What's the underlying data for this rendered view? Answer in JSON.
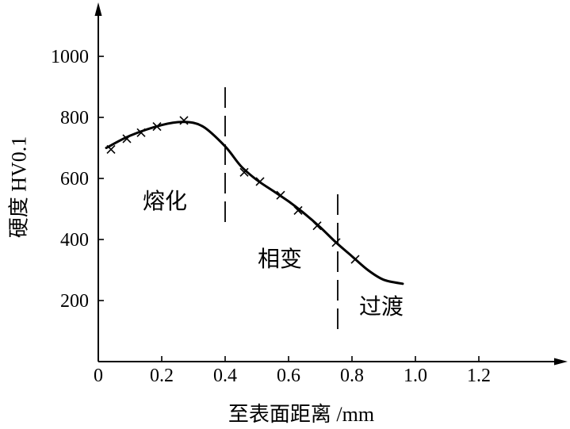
{
  "chart_data": {
    "type": "line",
    "title": "",
    "xlabel": "至表面距离 /mm",
    "ylabel": "硬度 HV0.1",
    "xlim": [
      0,
      1.475
    ],
    "ylim": [
      0,
      1169
    ],
    "grid": false,
    "legend": "none",
    "axis_arrows": true,
    "xticks": [
      {
        "value": 0,
        "label": "0"
      },
      {
        "value": 0.2,
        "label": "0.2"
      },
      {
        "value": 0.4,
        "label": "0.4"
      },
      {
        "value": 0.6,
        "label": "0.6"
      },
      {
        "value": 0.8,
        "label": "0.8"
      },
      {
        "value": 1.0,
        "label": "1.0"
      },
      {
        "value": 1.2,
        "label": "1.2"
      }
    ],
    "yticks": [
      {
        "value": 200,
        "label": "200"
      },
      {
        "value": 400,
        "label": "400"
      },
      {
        "value": 600,
        "label": "600"
      },
      {
        "value": 800,
        "label": "800"
      },
      {
        "value": 1000,
        "label": "1000"
      }
    ],
    "series": [
      {
        "style": "smooth-line",
        "x": [
          0.025,
          0.1,
          0.2,
          0.27,
          0.33,
          0.4,
          0.45,
          0.5,
          0.55,
          0.6,
          0.65,
          0.7,
          0.75,
          0.8,
          0.85,
          0.9,
          0.96
        ],
        "y": [
          700,
          740,
          775,
          785,
          770,
          705,
          640,
          595,
          560,
          525,
          485,
          440,
          390,
          345,
          300,
          268,
          255
        ]
      },
      {
        "style": "markers",
        "marker": "x",
        "x": [
          0.04,
          0.09,
          0.135,
          0.185,
          0.27,
          0.46,
          0.51,
          0.575,
          0.63,
          0.69,
          0.75,
          0.81
        ],
        "y": [
          695,
          730,
          750,
          770,
          790,
          620,
          590,
          545,
          495,
          445,
          390,
          335
        ]
      }
    ],
    "region_boundaries": [
      0.4,
      0.755
    ],
    "region_labels": [
      "熔化",
      "相变",
      "过渡"
    ],
    "colors": {
      "line": "#000000",
      "background": "#ffffff"
    }
  }
}
